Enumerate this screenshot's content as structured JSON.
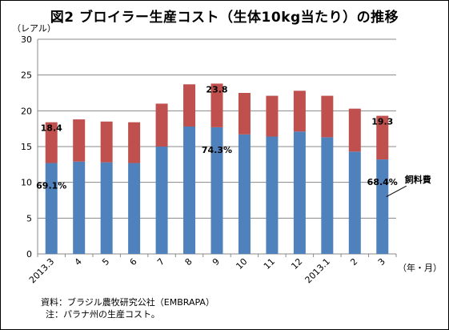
{
  "title": "図2 ブロイラー生産コスト（生体10kg当たり）の推移",
  "y_unit": "（レアル）",
  "x_unit": "（年・月）",
  "source_note": "資料：ブラジル農牧研究公社（EMBRAPA）",
  "footnote": "注：パラナ州の生産コスト。",
  "feed_label": "飼料費",
  "colors": {
    "feed": "#4f81bd",
    "other": "#c0504d",
    "grid": "#888888"
  },
  "chart_data": {
    "type": "bar",
    "stacked": true,
    "categories": [
      "2013.3",
      "4",
      "5",
      "6",
      "7",
      "8",
      "9",
      "10",
      "11",
      "12",
      "2013.1",
      "2",
      "3"
    ],
    "series": [
      {
        "name": "飼料費",
        "values": [
          12.7,
          12.9,
          12.8,
          12.7,
          15.0,
          17.8,
          17.7,
          16.7,
          16.4,
          17.1,
          16.3,
          14.3,
          13.2
        ]
      },
      {
        "values": [
          5.7,
          5.9,
          5.7,
          5.7,
          6.0,
          5.9,
          6.1,
          5.8,
          5.7,
          5.7,
          5.8,
          6.0,
          6.1
        ]
      }
    ],
    "totals_labeled": [
      {
        "category": "2013.3",
        "text": "18.4"
      },
      {
        "category": "9",
        "text": "23.8"
      },
      {
        "category": "3",
        "text": "19.3"
      }
    ],
    "share_labeled": [
      {
        "category": "2013.3",
        "text": "69.1%"
      },
      {
        "category": "9",
        "text": "74.3%"
      },
      {
        "category": "3",
        "text": "68.4%"
      }
    ],
    "ylim": [
      0,
      30
    ],
    "yticks": [
      0,
      5,
      10,
      15,
      20,
      25,
      30
    ],
    "grid": true
  }
}
